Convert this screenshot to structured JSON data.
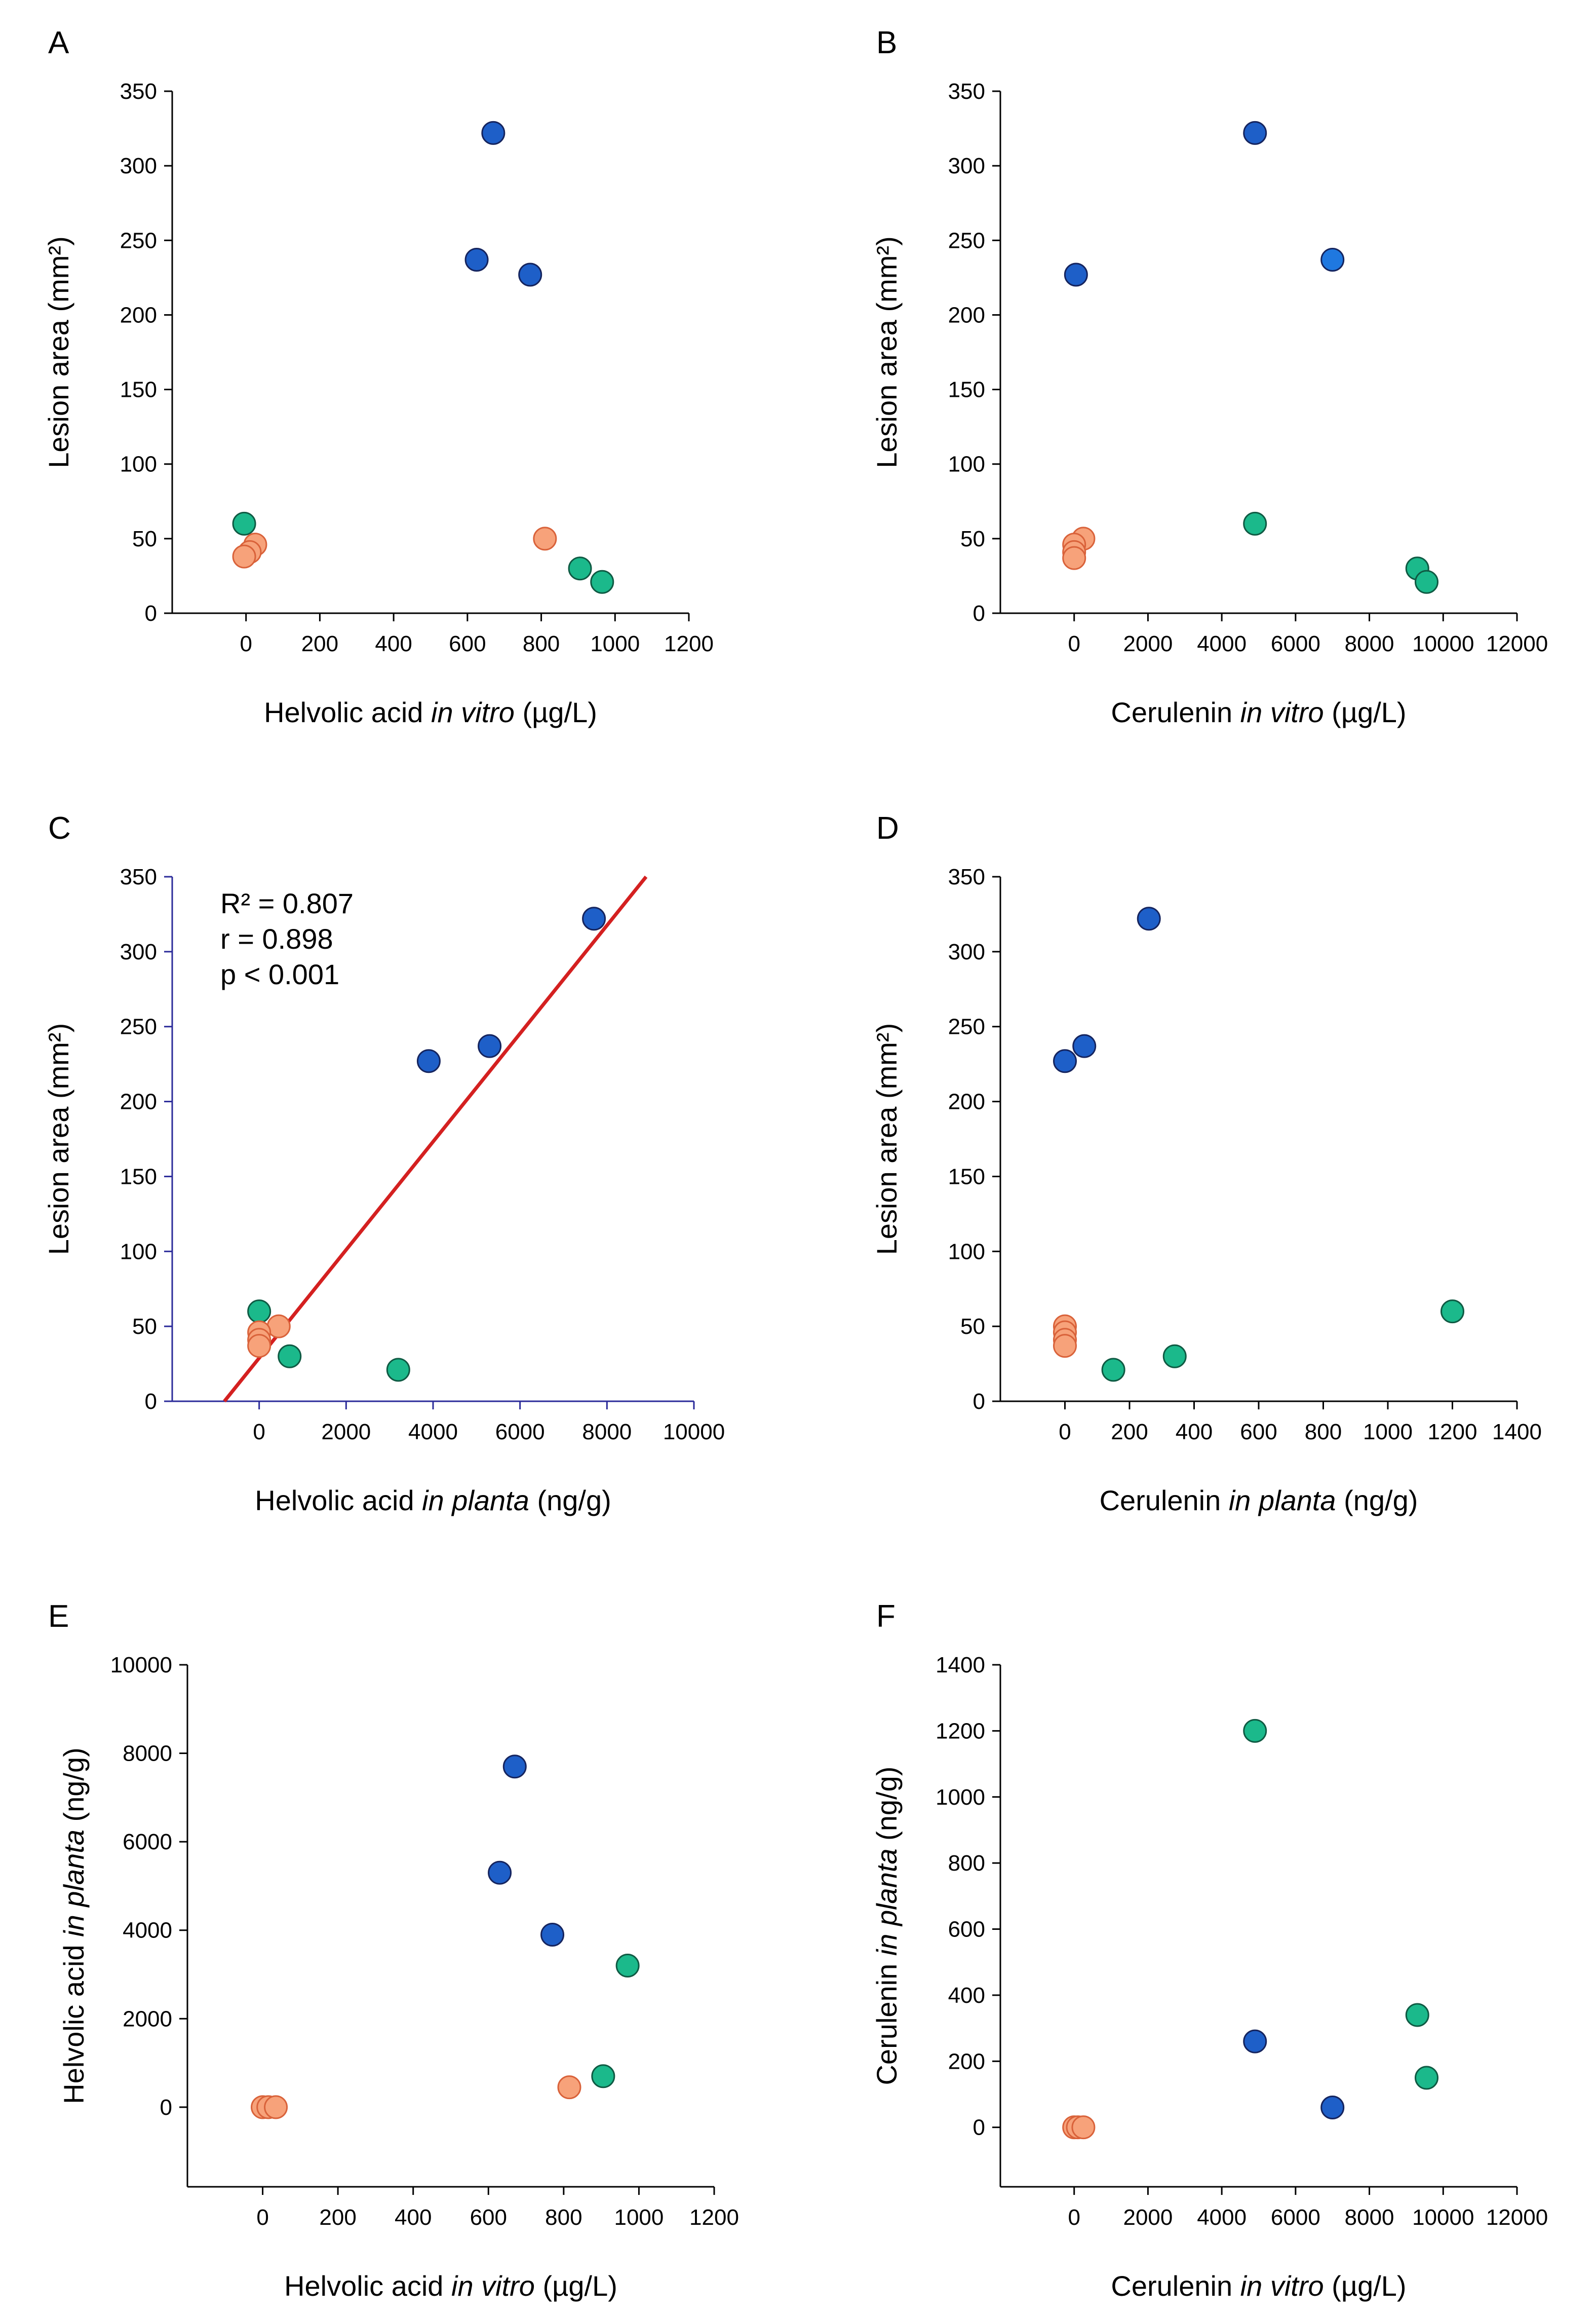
{
  "colors": {
    "group_blue": "#1e5fc8",
    "group_blue_light": "#1f78e0",
    "group_blue_edge": "#15245e",
    "group_green": "#1bb98b",
    "group_green_edge": "#0f5a43",
    "group_orange": "#f7a27a",
    "group_orange_edge": "#d9623a",
    "fit_line": "#d42020",
    "axis_blue": "#2b2b9a"
  },
  "chart_data": [
    {
      "panel": "A",
      "type": "scatter",
      "xlabel": {
        "pre": "Helvolic acid ",
        "italic": "in vitro",
        "post": " (µg/L)"
      },
      "ylabel": {
        "pre": "Lesion area (mm²)",
        "italic": "",
        "post": ""
      },
      "xlim": [
        -200,
        1200
      ],
      "ylim": [
        0,
        350
      ],
      "xticks": [
        0,
        200,
        400,
        600,
        800,
        1000,
        1200
      ],
      "yticks": [
        0,
        50,
        100,
        150,
        200,
        250,
        300,
        350
      ],
      "points": [
        {
          "x": 670,
          "y": 322,
          "group": "blue"
        },
        {
          "x": 625,
          "y": 237,
          "group": "blue"
        },
        {
          "x": 770,
          "y": 227,
          "group": "blue"
        },
        {
          "x": -5,
          "y": 60,
          "group": "green"
        },
        {
          "x": 905,
          "y": 30,
          "group": "green"
        },
        {
          "x": 965,
          "y": 21,
          "group": "green"
        },
        {
          "x": 810,
          "y": 50,
          "group": "orange"
        },
        {
          "x": 25,
          "y": 46,
          "group": "orange"
        },
        {
          "x": 10,
          "y": 41,
          "group": "orange"
        },
        {
          "x": -5,
          "y": 38,
          "group": "orange"
        }
      ]
    },
    {
      "panel": "B",
      "type": "scatter",
      "xlabel": {
        "pre": "Cerulenin ",
        "italic": "in vitro",
        "post": " (µg/L)"
      },
      "ylabel": {
        "pre": "Lesion area (mm²)",
        "italic": "",
        "post": ""
      },
      "xlim": [
        -2000,
        12000
      ],
      "ylim": [
        0,
        350
      ],
      "xticks": [
        0,
        2000,
        4000,
        6000,
        8000,
        10000,
        12000
      ],
      "yticks": [
        0,
        50,
        100,
        150,
        200,
        250,
        300,
        350
      ],
      "points": [
        {
          "x": 4900,
          "y": 322,
          "group": "blue"
        },
        {
          "x": 7000,
          "y": 237,
          "group": "blue_light"
        },
        {
          "x": 50,
          "y": 227,
          "group": "blue"
        },
        {
          "x": 4900,
          "y": 60,
          "group": "green"
        },
        {
          "x": 9300,
          "y": 30,
          "group": "green"
        },
        {
          "x": 9550,
          "y": 21,
          "group": "green"
        },
        {
          "x": 250,
          "y": 50,
          "group": "orange"
        },
        {
          "x": 0,
          "y": 46,
          "group": "orange"
        },
        {
          "x": 0,
          "y": 41,
          "group": "orange"
        },
        {
          "x": 0,
          "y": 37,
          "group": "orange"
        }
      ]
    },
    {
      "panel": "C",
      "type": "scatter",
      "xlabel": {
        "pre": "Helvolic acid ",
        "italic": "in planta",
        "post": " (ng/g)"
      },
      "ylabel": {
        "pre": "Lesion area (mm²)",
        "italic": "",
        "post": ""
      },
      "xlim": [
        -2000,
        10000
      ],
      "ylim": [
        0,
        350
      ],
      "xticks": [
        0,
        2000,
        4000,
        6000,
        8000,
        10000
      ],
      "yticks": [
        0,
        50,
        100,
        150,
        200,
        250,
        300,
        350
      ],
      "axis_style": "blue",
      "annotations": [
        "R² = 0.807",
        "r = 0.898",
        "p < 0.001"
      ],
      "fit_line": {
        "x": [
          -800,
          8900
        ],
        "y": [
          0,
          350
        ]
      },
      "points": [
        {
          "x": 7700,
          "y": 322,
          "group": "blue"
        },
        {
          "x": 5300,
          "y": 237,
          "group": "blue"
        },
        {
          "x": 3900,
          "y": 227,
          "group": "blue"
        },
        {
          "x": 0,
          "y": 60,
          "group": "green"
        },
        {
          "x": 700,
          "y": 30,
          "group": "green"
        },
        {
          "x": 3200,
          "y": 21,
          "group": "green"
        },
        {
          "x": 450,
          "y": 50,
          "group": "orange"
        },
        {
          "x": 0,
          "y": 46,
          "group": "orange"
        },
        {
          "x": 0,
          "y": 41,
          "group": "orange"
        },
        {
          "x": 0,
          "y": 37,
          "group": "orange"
        }
      ]
    },
    {
      "panel": "D",
      "type": "scatter",
      "xlabel": {
        "pre": "Cerulenin ",
        "italic": "in planta",
        "post": " (ng/g)"
      },
      "ylabel": {
        "pre": "Lesion area (mm²)",
        "italic": "",
        "post": ""
      },
      "xlim": [
        -200,
        1400
      ],
      "ylim": [
        0,
        350
      ],
      "xticks": [
        0,
        200,
        400,
        600,
        800,
        1000,
        1200,
        1400
      ],
      "yticks": [
        0,
        50,
        100,
        150,
        200,
        250,
        300,
        350
      ],
      "points": [
        {
          "x": 260,
          "y": 322,
          "group": "blue"
        },
        {
          "x": 60,
          "y": 237,
          "group": "blue"
        },
        {
          "x": 0,
          "y": 227,
          "group": "blue"
        },
        {
          "x": 1200,
          "y": 60,
          "group": "green"
        },
        {
          "x": 340,
          "y": 30,
          "group": "green"
        },
        {
          "x": 150,
          "y": 21,
          "group": "green"
        },
        {
          "x": 0,
          "y": 50,
          "group": "orange"
        },
        {
          "x": 0,
          "y": 46,
          "group": "orange"
        },
        {
          "x": 0,
          "y": 41,
          "group": "orange"
        },
        {
          "x": 0,
          "y": 37,
          "group": "orange"
        }
      ]
    },
    {
      "panel": "E",
      "type": "scatter",
      "xlabel": {
        "pre": "Helvolic acid ",
        "italic": "in vitro",
        "post": " (µg/L)"
      },
      "ylabel": {
        "pre": "Helvolic acid ",
        "italic": "in planta",
        "post": " (ng/g)"
      },
      "xlim": [
        -200,
        1200
      ],
      "ylim": [
        -1800,
        10000
      ],
      "xticks": [
        0,
        200,
        400,
        600,
        800,
        1000,
        1200
      ],
      "yticks": [
        0,
        2000,
        4000,
        6000,
        8000,
        10000
      ],
      "points": [
        {
          "x": 670,
          "y": 7700,
          "group": "blue"
        },
        {
          "x": 630,
          "y": 5300,
          "group": "blue"
        },
        {
          "x": 770,
          "y": 3900,
          "group": "blue"
        },
        {
          "x": 970,
          "y": 3200,
          "group": "green"
        },
        {
          "x": 905,
          "y": 700,
          "group": "green"
        },
        {
          "x": 815,
          "y": 450,
          "group": "orange"
        },
        {
          "x": 0,
          "y": 0,
          "group": "orange"
        },
        {
          "x": 15,
          "y": 0,
          "group": "orange"
        },
        {
          "x": 35,
          "y": 0,
          "group": "orange"
        }
      ]
    },
    {
      "panel": "F",
      "type": "scatter",
      "xlabel": {
        "pre": "Cerulenin ",
        "italic": "in vitro",
        "post": " (µg/L)"
      },
      "ylabel": {
        "pre": "Cerulenin ",
        "italic": "in planta",
        "post": " (ng/g)"
      },
      "xlim": [
        -2000,
        12000
      ],
      "ylim": [
        -180,
        1400
      ],
      "xticks": [
        0,
        2000,
        4000,
        6000,
        8000,
        10000,
        12000
      ],
      "yticks": [
        0,
        200,
        400,
        600,
        800,
        1000,
        1200,
        1400
      ],
      "points": [
        {
          "x": 4900,
          "y": 1200,
          "group": "green"
        },
        {
          "x": 9300,
          "y": 340,
          "group": "green"
        },
        {
          "x": 9550,
          "y": 150,
          "group": "green"
        },
        {
          "x": 4900,
          "y": 260,
          "group": "blue"
        },
        {
          "x": 7000,
          "y": 60,
          "group": "blue"
        },
        {
          "x": 0,
          "y": 0,
          "group": "orange"
        },
        {
          "x": 100,
          "y": 0,
          "group": "orange"
        },
        {
          "x": 250,
          "y": 0,
          "group": "orange"
        }
      ]
    }
  ]
}
